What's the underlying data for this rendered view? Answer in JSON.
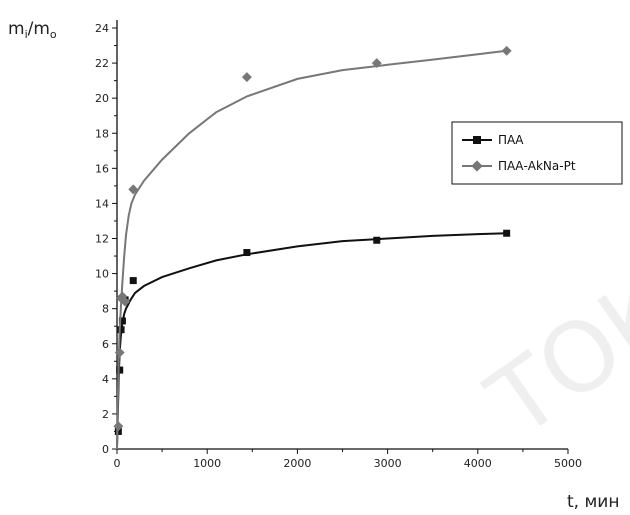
{
  "chart_data": {
    "type": "line",
    "ylabel_main": "m",
    "ylabel_sub1": "i",
    "ylabel_sep": "/m",
    "ylabel_sub2": "o",
    "xlabel": "t, мин",
    "xlim": [
      0,
      5000
    ],
    "ylim": [
      0,
      25
    ],
    "xticks": [
      0,
      1000,
      2000,
      3000,
      4000,
      5000
    ],
    "yticks": [
      0,
      2,
      4,
      6,
      8,
      10,
      12,
      14,
      16,
      18,
      20,
      22,
      24
    ],
    "legend_position": "right",
    "series": [
      {
        "name": "ПАА",
        "marker": "square",
        "color": "#111111",
        "points": [
          [
            15,
            1.0
          ],
          [
            30,
            4.5
          ],
          [
            45,
            6.8
          ],
          [
            60,
            7.3
          ],
          [
            90,
            8.5
          ],
          [
            180,
            9.6
          ],
          [
            1440,
            11.2
          ],
          [
            2880,
            11.9
          ],
          [
            4320,
            12.3
          ]
        ],
        "curve": [
          [
            0,
            0
          ],
          [
            10,
            2.2
          ],
          [
            20,
            4.2
          ],
          [
            30,
            5.6
          ],
          [
            45,
            6.6
          ],
          [
            60,
            7.2
          ],
          [
            80,
            7.7
          ],
          [
            100,
            8.0
          ],
          [
            150,
            8.5
          ],
          [
            200,
            8.9
          ],
          [
            300,
            9.3
          ],
          [
            500,
            9.8
          ],
          [
            800,
            10.3
          ],
          [
            1100,
            10.75
          ],
          [
            1440,
            11.1
          ],
          [
            2000,
            11.55
          ],
          [
            2500,
            11.85
          ],
          [
            3000,
            12.0
          ],
          [
            3500,
            12.15
          ],
          [
            4000,
            12.25
          ],
          [
            4320,
            12.3
          ]
        ]
      },
      {
        "name": "ПАА-AkNa-Pt",
        "marker": "diamond",
        "color": "#777777",
        "points": [
          [
            15,
            1.3
          ],
          [
            30,
            5.5
          ],
          [
            45,
            8.6
          ],
          [
            60,
            8.7
          ],
          [
            90,
            8.4
          ],
          [
            180,
            14.8
          ],
          [
            1440,
            21.2
          ],
          [
            2880,
            22.0
          ],
          [
            4320,
            22.7
          ]
        ],
        "curve": [
          [
            0,
            0
          ],
          [
            10,
            3.0
          ],
          [
            20,
            5.2
          ],
          [
            30,
            6.8
          ],
          [
            45,
            8.3
          ],
          [
            60,
            9.5
          ],
          [
            80,
            11.0
          ],
          [
            100,
            12.2
          ],
          [
            130,
            13.3
          ],
          [
            160,
            14.0
          ],
          [
            200,
            14.5
          ],
          [
            300,
            15.3
          ],
          [
            500,
            16.5
          ],
          [
            800,
            18.0
          ],
          [
            1100,
            19.2
          ],
          [
            1440,
            20.1
          ],
          [
            2000,
            21.1
          ],
          [
            2500,
            21.6
          ],
          [
            3000,
            21.9
          ],
          [
            3500,
            22.2
          ],
          [
            4000,
            22.5
          ],
          [
            4320,
            22.7
          ]
        ]
      }
    ]
  }
}
